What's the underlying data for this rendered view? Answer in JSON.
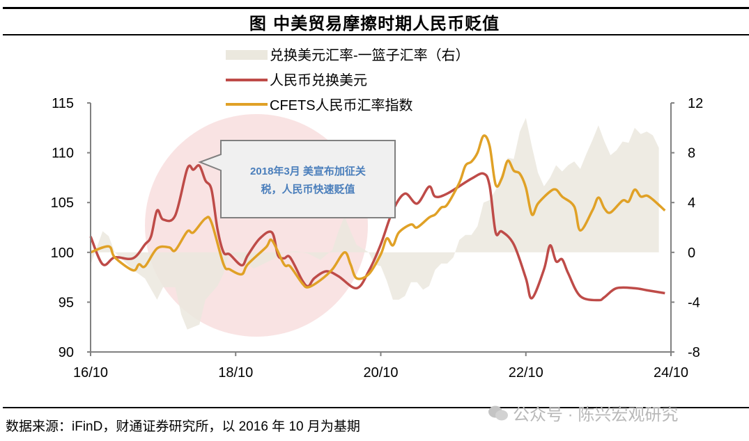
{
  "title": "图  中美贸易摩擦时期人民币贬值",
  "source": "数据来源：iFinD，财通证券研究所，以 2016 年 10 月为基期",
  "watermark": {
    "text": "公众号 · 陈兴宏观研究",
    "icon": "wechat-icon"
  },
  "annotation": {
    "line1": "2018年3月 美宣布加征关",
    "line2": "税，人民币快速贬值",
    "highlight_color": "#f3c8c8"
  },
  "chart_data": {
    "type": "line",
    "title": "中美贸易摩擦时期人民币贬值",
    "x_ticks": [
      "16/10",
      "18/10",
      "20/10",
      "22/10",
      "24/10"
    ],
    "xlim": [
      "2016-10",
      "2024-10"
    ],
    "ylim_left": [
      90,
      115
    ],
    "y_ticks_left": [
      "115",
      "110",
      "105",
      "100",
      "95",
      "90"
    ],
    "ylim_right": [
      -8,
      12
    ],
    "y_ticks_right": [
      "12",
      "8",
      "4",
      "0",
      "-4",
      "-8"
    ],
    "grid": false,
    "legend_position": "top",
    "series": [
      {
        "name": "兑换美元汇率-一篮子汇率（右）",
        "type": "area",
        "axis": "right",
        "color": "#ebe8de",
        "points": [
          [
            "2016-10",
            -1
          ],
          [
            "2016-12",
            1.7
          ],
          [
            "2017-01",
            1.3
          ],
          [
            "2017-02",
            0
          ],
          [
            "2017-05",
            -1.4
          ],
          [
            "2017-07",
            -2.1
          ],
          [
            "2017-09",
            -3.8
          ],
          [
            "2017-10",
            -2.8
          ],
          [
            "2017-12",
            -2.8
          ],
          [
            "2018-01",
            -5
          ],
          [
            "2018-02",
            -6.2
          ],
          [
            "2018-04",
            -5.8
          ],
          [
            "2018-05",
            -3.8
          ],
          [
            "2018-07",
            -2.7
          ],
          [
            "2018-08",
            -1.7
          ],
          [
            "2018-09",
            0
          ],
          [
            "2018-11",
            -0.6
          ],
          [
            "2019-01",
            -1.3
          ],
          [
            "2019-04",
            -0.6
          ],
          [
            "2019-06",
            0
          ],
          [
            "2019-08",
            0.1
          ],
          [
            "2019-10",
            -0.1
          ],
          [
            "2019-12",
            -0.6
          ],
          [
            "2020-02",
            0.2
          ],
          [
            "2020-03",
            1.7
          ],
          [
            "2020-04",
            2.9
          ],
          [
            "2020-05",
            1.7
          ],
          [
            "2020-06",
            0.6
          ],
          [
            "2020-08",
            0
          ],
          [
            "2020-09",
            -1
          ],
          [
            "2020-10",
            -1.1
          ],
          [
            "2020-11",
            -2.3
          ],
          [
            "2020-12",
            -3.8
          ],
          [
            "2021-01",
            -3.8
          ],
          [
            "2021-02",
            -3.5
          ],
          [
            "2021-03",
            -2.4
          ],
          [
            "2021-04",
            -2.4
          ],
          [
            "2021-05",
            -3
          ],
          [
            "2021-06",
            -2.7
          ],
          [
            "2021-07",
            -1.4
          ],
          [
            "2021-08",
            -0.9
          ],
          [
            "2021-09",
            -0.9
          ],
          [
            "2021-10",
            -0.4
          ],
          [
            "2021-11",
            1
          ],
          [
            "2021-12",
            1.4
          ],
          [
            "2022-01",
            1.4
          ],
          [
            "2022-02",
            2.1
          ],
          [
            "2022-03",
            4
          ],
          [
            "2022-04",
            4.2
          ],
          [
            "2022-05",
            5
          ],
          [
            "2022-07",
            7.6
          ],
          [
            "2022-08",
            7.5
          ],
          [
            "2022-09",
            9.7
          ],
          [
            "2022-10",
            10.8
          ],
          [
            "2022-11",
            8.5
          ],
          [
            "2022-12",
            6.4
          ],
          [
            "2023-01",
            5.3
          ],
          [
            "2023-02",
            6
          ],
          [
            "2023-03",
            7
          ],
          [
            "2023-04",
            6.5
          ],
          [
            "2023-05",
            7
          ],
          [
            "2023-06",
            7.3
          ],
          [
            "2023-07",
            6.7
          ],
          [
            "2023-08",
            7.9
          ],
          [
            "2023-09",
            9
          ],
          [
            "2023-10",
            10.2
          ],
          [
            "2023-11",
            8.9
          ],
          [
            "2023-12",
            7.8
          ],
          [
            "2024-01",
            8.2
          ],
          [
            "2024-02",
            8.9
          ],
          [
            "2024-03",
            8.8
          ],
          [
            "2024-04",
            10
          ],
          [
            "2024-05",
            9.5
          ],
          [
            "2024-06",
            9.7
          ],
          [
            "2024-07",
            9.4
          ],
          [
            "2024-08",
            8.4
          ]
        ]
      },
      {
        "name": "人民币兑换美元",
        "type": "line",
        "axis": "left",
        "color": "#be4b48",
        "points": [
          [
            "2016-10",
            101.6
          ],
          [
            "2016-12",
            98.8
          ],
          [
            "2017-02",
            99.5
          ],
          [
            "2017-05",
            99.4
          ],
          [
            "2017-07",
            100.8
          ],
          [
            "2017-08",
            101.6
          ],
          [
            "2017-09",
            104.2
          ],
          [
            "2017-10",
            103.3
          ],
          [
            "2017-12",
            103.7
          ],
          [
            "2018-02",
            108.4
          ],
          [
            "2018-03",
            108.3
          ],
          [
            "2018-04",
            108.7
          ],
          [
            "2018-05",
            107.2
          ],
          [
            "2018-06",
            106.3
          ],
          [
            "2018-07",
            102.3
          ],
          [
            "2018-08",
            100
          ],
          [
            "2018-09",
            99.8
          ],
          [
            "2018-11",
            98.7
          ],
          [
            "2018-12",
            99.7
          ],
          [
            "2019-02",
            101.4
          ],
          [
            "2019-04",
            102
          ],
          [
            "2019-05",
            99.7
          ],
          [
            "2019-06",
            99.4
          ],
          [
            "2019-07",
            99.5
          ],
          [
            "2019-09",
            97.2
          ],
          [
            "2019-10",
            96.6
          ],
          [
            "2019-11",
            97.4
          ],
          [
            "2020-01",
            98.1
          ],
          [
            "2020-03",
            97.6
          ],
          [
            "2020-06",
            96.4
          ],
          [
            "2020-08",
            98.1
          ],
          [
            "2020-10",
            100.8
          ],
          [
            "2020-12",
            104.2
          ],
          [
            "2021-02",
            105.9
          ],
          [
            "2021-04",
            104.9
          ],
          [
            "2021-06",
            106.6
          ],
          [
            "2021-07",
            105.6
          ],
          [
            "2021-09",
            105.9
          ],
          [
            "2022-01",
            107.4
          ],
          [
            "2022-03",
            107.9
          ],
          [
            "2022-04",
            106.7
          ],
          [
            "2022-05",
            102
          ],
          [
            "2022-06",
            102.1
          ],
          [
            "2022-08",
            100.8
          ],
          [
            "2022-10",
            97.4
          ],
          [
            "2022-11",
            95.4
          ],
          [
            "2023-01",
            98.3
          ],
          [
            "2023-02",
            100.7
          ],
          [
            "2023-03",
            99.1
          ],
          [
            "2023-04",
            99.3
          ],
          [
            "2023-05",
            97.9
          ],
          [
            "2023-07",
            95.6
          ],
          [
            "2023-10",
            95.2
          ],
          [
            "2023-11",
            95.5
          ],
          [
            "2024-01",
            96.4
          ],
          [
            "2024-04",
            96.4
          ],
          [
            "2024-06",
            96.2
          ],
          [
            "2024-09",
            95.9
          ]
        ]
      },
      {
        "name": "CFETS人民币汇率指数",
        "type": "line",
        "axis": "left",
        "color": "#e0a126",
        "points": [
          [
            "2016-10",
            100
          ],
          [
            "2017-01",
            100.6
          ],
          [
            "2017-02",
            99.5
          ],
          [
            "2017-05",
            98.2
          ],
          [
            "2017-06",
            98.8
          ],
          [
            "2017-07",
            98.6
          ],
          [
            "2017-09",
            100.4
          ],
          [
            "2017-11",
            100.5
          ],
          [
            "2017-12",
            100.2
          ],
          [
            "2018-02",
            102.1
          ],
          [
            "2018-03",
            102
          ],
          [
            "2018-05",
            103.4
          ],
          [
            "2018-06",
            103
          ],
          [
            "2018-08",
            98.8
          ],
          [
            "2018-09",
            98.3
          ],
          [
            "2018-11",
            97.8
          ],
          [
            "2018-12",
            98.8
          ],
          [
            "2019-03",
            100.5
          ],
          [
            "2019-04",
            101.2
          ],
          [
            "2019-06",
            98.8
          ],
          [
            "2019-07",
            98.6
          ],
          [
            "2019-09",
            96.9
          ],
          [
            "2019-10",
            96.5
          ],
          [
            "2019-12",
            97.2
          ],
          [
            "2020-02",
            98.3
          ],
          [
            "2020-04",
            100
          ],
          [
            "2020-05",
            98.8
          ],
          [
            "2020-06",
            97.4
          ],
          [
            "2020-08",
            97.8
          ],
          [
            "2020-10",
            99.8
          ],
          [
            "2020-11",
            101.4
          ],
          [
            "2020-12",
            100.7
          ],
          [
            "2021-01",
            102
          ],
          [
            "2021-03",
            102.8
          ],
          [
            "2021-04",
            102.5
          ],
          [
            "2021-06",
            103.5
          ],
          [
            "2021-07",
            103.8
          ],
          [
            "2021-08",
            104.5
          ],
          [
            "2021-09",
            104.8
          ],
          [
            "2021-11",
            107
          ],
          [
            "2021-12",
            108.7
          ],
          [
            "2022-01",
            109.1
          ],
          [
            "2022-02",
            110
          ],
          [
            "2022-03",
            111.7
          ],
          [
            "2022-04",
            110.7
          ],
          [
            "2022-05",
            106.8
          ],
          [
            "2022-06",
            107.4
          ],
          [
            "2022-07",
            109.2
          ],
          [
            "2022-08",
            108.2
          ],
          [
            "2022-09",
            107.9
          ],
          [
            "2022-10",
            106.5
          ],
          [
            "2022-11",
            103.8
          ],
          [
            "2022-12",
            104.9
          ],
          [
            "2023-02",
            106.1
          ],
          [
            "2023-03",
            106.3
          ],
          [
            "2023-04",
            105.6
          ],
          [
            "2023-06",
            104.6
          ],
          [
            "2023-07",
            102.2
          ],
          [
            "2023-09",
            104.2
          ],
          [
            "2023-10",
            105.5
          ],
          [
            "2023-11",
            104.4
          ],
          [
            "2023-12",
            104
          ],
          [
            "2024-02",
            105.2
          ],
          [
            "2024-03",
            105.1
          ],
          [
            "2024-04",
            106.3
          ],
          [
            "2024-05",
            105.6
          ],
          [
            "2024-06",
            105.7
          ],
          [
            "2024-07",
            105.3
          ],
          [
            "2024-09",
            104.2
          ]
        ]
      }
    ]
  }
}
